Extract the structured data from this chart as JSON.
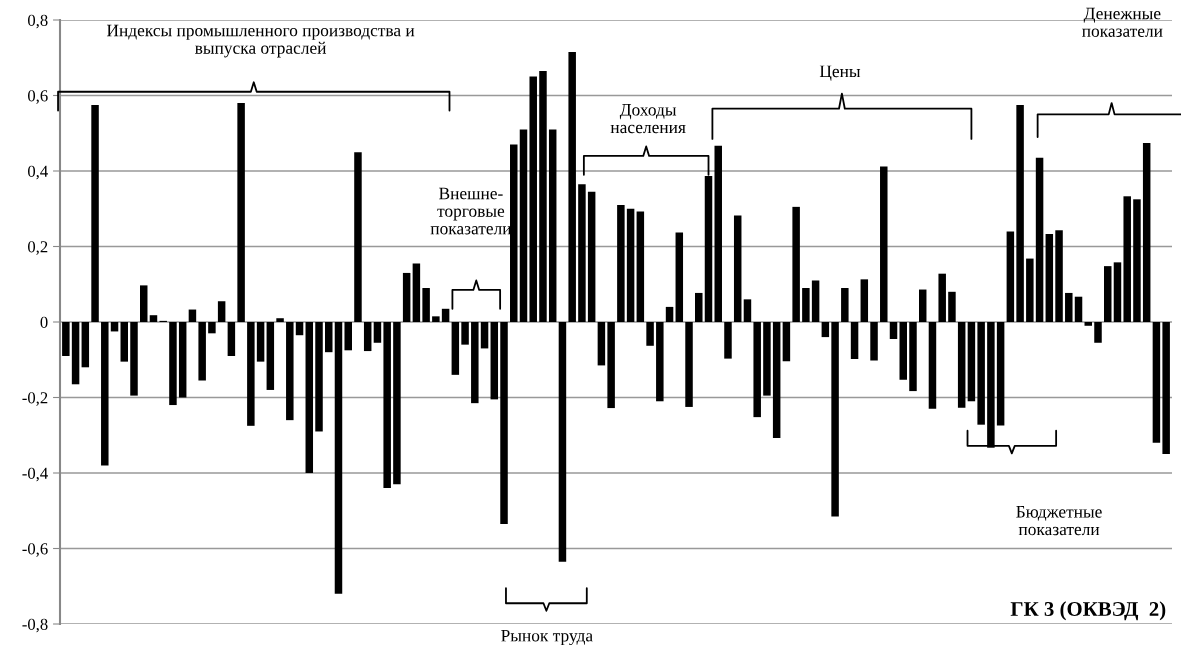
{
  "chart_data": {
    "type": "bar",
    "title": "ГК 3 (ОКВЭД  2)",
    "categories": [
      null,
      null,
      null,
      null,
      null,
      null,
      null,
      null,
      null,
      null,
      null,
      null,
      null,
      null,
      null,
      null,
      null,
      null,
      null,
      null,
      null,
      null,
      null,
      null,
      null,
      null,
      null,
      null,
      null,
      null,
      null,
      null,
      null,
      null,
      null,
      null,
      null,
      null,
      null,
      null,
      null,
      null,
      null,
      null,
      null,
      null,
      null,
      null,
      null,
      null,
      null,
      null,
      null,
      null,
      null,
      null,
      null,
      null,
      null,
      null,
      null,
      null,
      null,
      null,
      null,
      null,
      null,
      null,
      null,
      null,
      null,
      null,
      null,
      null,
      null,
      null,
      null,
      null,
      null,
      null,
      null,
      null,
      null,
      null,
      null,
      null,
      null,
      null,
      null,
      null,
      null,
      null,
      null,
      null,
      null,
      null,
      null,
      null,
      null,
      null,
      null,
      null,
      null,
      null,
      null,
      null,
      null,
      null,
      null,
      null,
      null,
      null,
      null,
      null
    ],
    "values": [
      -0.09,
      -0.165,
      -0.12,
      0.575,
      -0.38,
      -0.025,
      -0.105,
      -0.195,
      0.097,
      0.018,
      0.003,
      -0.22,
      -0.2,
      0.033,
      -0.155,
      -0.03,
      0.055,
      -0.09,
      0.58,
      -0.275,
      -0.105,
      -0.18,
      0.01,
      -0.26,
      -0.035,
      -0.4,
      -0.29,
      -0.08,
      -0.72,
      -0.075,
      0.45,
      -0.077,
      -0.055,
      -0.44,
      -0.43,
      0.13,
      0.155,
      0.09,
      0.015,
      0.035,
      -0.14,
      -0.06,
      -0.215,
      -0.07,
      -0.205,
      -0.535,
      0.47,
      0.51,
      0.65,
      0.665,
      0.51,
      -0.635,
      0.715,
      0.365,
      0.345,
      -0.115,
      -0.228,
      0.31,
      0.3,
      0.293,
      -0.063,
      -0.21,
      0.04,
      0.237,
      -0.225,
      0.077,
      0.387,
      0.467,
      -0.097,
      0.282,
      0.06,
      -0.252,
      -0.195,
      -0.307,
      -0.104,
      0.305,
      0.09,
      0.11,
      -0.04,
      -0.515,
      0.09,
      -0.098,
      0.113,
      -0.102,
      0.412,
      -0.045,
      -0.153,
      -0.183,
      0.086,
      -0.23,
      0.128,
      0.08,
      -0.227,
      -0.21,
      -0.272,
      -0.333,
      -0.274,
      0.24,
      0.575,
      0.168,
      0.435,
      0.233,
      0.243,
      0.077,
      0.067,
      -0.01,
      -0.055,
      0.148,
      0.158,
      0.333,
      0.325,
      0.474,
      -0.32,
      -0.35
    ],
    "color": "#000000",
    "ylim": [
      -0.8,
      0.8
    ],
    "yticks": [
      {
        "value": -0.8,
        "label": "-0,8"
      },
      {
        "value": -0.6,
        "label": "-0,6"
      },
      {
        "value": -0.4,
        "label": "-0,4"
      },
      {
        "value": -0.2,
        "label": "-0,2"
      },
      0,
      {
        "value": 0.2,
        "label": "0,2"
      },
      {
        "value": 0.4,
        "label": "0,4"
      },
      {
        "value": 0.6,
        "label": "0,6"
      },
      {
        "value": 0.8,
        "label": "0,8"
      }
    ],
    "grid": "y",
    "tick_labels": "y",
    "annotations": [
      "Индексы промышленного производства и\nвыпуска отраслей",
      "Внешне-\nторговые\nпоказатели",
      "Рынок труда",
      "Доходы\nнаселения",
      "Цены",
      "Бюджетные\nпоказатели",
      "Денежные\nпоказатели"
    ]
  }
}
